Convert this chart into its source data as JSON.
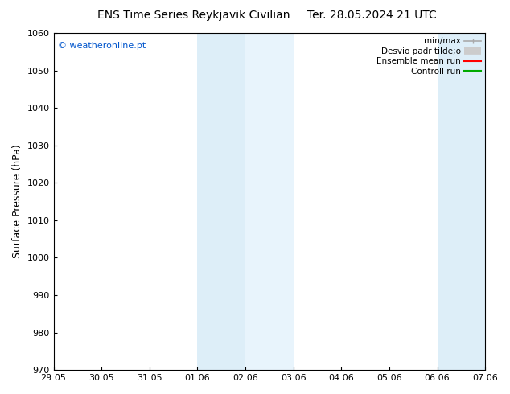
{
  "title_left": "ENS Time Series Reykjavik Civilian",
  "title_right": "Ter. 28.05.2024 21 UTC",
  "ylabel": "Surface Pressure (hPa)",
  "ylim": [
    970,
    1060
  ],
  "yticks": [
    970,
    980,
    990,
    1000,
    1010,
    1020,
    1030,
    1040,
    1050,
    1060
  ],
  "xtick_labels": [
    "29.05",
    "30.05",
    "31.05",
    "01.06",
    "02.06",
    "03.06",
    "04.06",
    "05.06",
    "06.06",
    "07.06"
  ],
  "xtick_positions": [
    0,
    1,
    2,
    3,
    4,
    5,
    6,
    7,
    8,
    9
  ],
  "shaded_bands": [
    {
      "xmin": 3,
      "xmax": 4,
      "color": "#ddeef8"
    },
    {
      "xmin": 4,
      "xmax": 5,
      "color": "#e8f4fc"
    },
    {
      "xmin": 8,
      "xmax": 9,
      "color": "#ddeef8"
    }
  ],
  "watermark": "© weatheronline.pt",
  "watermark_color": "#0055cc",
  "legend_items": [
    {
      "label": "min/max",
      "color": "#aaaaaa",
      "lw": 1.2,
      "type": "minmax"
    },
    {
      "label": "Desvio padr tilde;o",
      "color": "#cccccc",
      "lw": 7,
      "type": "fill"
    },
    {
      "label": "Ensemble mean run",
      "color": "#ff0000",
      "lw": 1.5,
      "type": "line"
    },
    {
      "label": "Controll run",
      "color": "#00aa00",
      "lw": 1.5,
      "type": "line"
    }
  ],
  "bg_color": "#ffffff",
  "plot_bg_color": "#ffffff",
  "tick_label_fontsize": 8,
  "title_fontsize": 10,
  "ylabel_fontsize": 9,
  "legend_fontsize": 7.5
}
